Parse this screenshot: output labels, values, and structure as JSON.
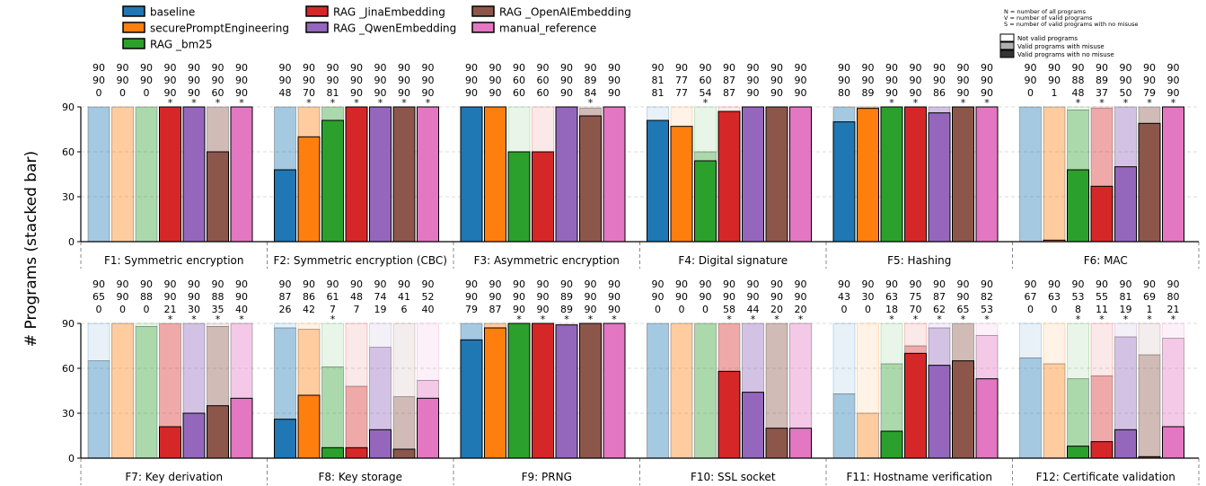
{
  "chart_data": {
    "type": "bar",
    "stacked": true,
    "ylabel": "# Programs (stacked bar)",
    "ylim": [
      0,
      90
    ],
    "yticks": [
      0,
      30,
      60,
      90
    ],
    "grid": true,
    "legend": {
      "placement": "top-left",
      "entries": [
        "baseline",
        "securePromptEngineering",
        "RAG _bm25",
        "RAG _JinaEmbedding",
        "RAG _QwenEmbedding",
        "RAG _OpenAIEmbedding",
        "manual_reference"
      ]
    },
    "series": [
      {
        "name": "baseline",
        "color": "#1f77b4"
      },
      {
        "name": "securePromptEngineering",
        "color": "#ff7f0e"
      },
      {
        "name": "RAG _bm25",
        "color": "#2ca02c"
      },
      {
        "name": "RAG _JinaEmbedding",
        "color": "#d62728"
      },
      {
        "name": "RAG _QwenEmbedding",
        "color": "#9467bd"
      },
      {
        "name": "RAG _OpenAIEmbedding",
        "color": "#8c564b"
      },
      {
        "name": "manual_reference",
        "color": "#e377c2"
      }
    ],
    "key": {
      "notes": [
        "N = number of all programs",
        "V = number of valid programs",
        "S = number of valid programs with no misuse"
      ],
      "entries": [
        {
          "label": "Not valid programs",
          "color": "#ffffff"
        },
        {
          "label": "Valid programs with misuse",
          "color": "#b0b0b0"
        },
        {
          "label": "Valid programs with no misuse",
          "color": "#333333"
        }
      ]
    },
    "panels": [
      {
        "label": "F1: Symmetric encryption",
        "N": [
          90,
          90,
          90,
          90,
          90,
          90,
          90
        ],
        "V": [
          90,
          90,
          90,
          90,
          90,
          90,
          90
        ],
        "S": [
          0,
          0,
          0,
          90,
          90,
          60,
          90
        ],
        "star": [
          false,
          false,
          false,
          true,
          true,
          true,
          true
        ]
      },
      {
        "label": "F2: Symmetric encryption (CBC)",
        "N": [
          90,
          90,
          90,
          90,
          90,
          90,
          90
        ],
        "V": [
          90,
          90,
          90,
          90,
          90,
          90,
          90
        ],
        "S": [
          48,
          70,
          81,
          90,
          90,
          90,
          90
        ],
        "star": [
          false,
          true,
          true,
          true,
          true,
          true,
          true
        ]
      },
      {
        "label": "F3: Asymmetric encryption",
        "N": [
          90,
          90,
          90,
          90,
          90,
          90,
          90
        ],
        "V": [
          90,
          90,
          60,
          60,
          90,
          89,
          90
        ],
        "S": [
          90,
          90,
          60,
          60,
          90,
          84,
          90
        ],
        "star": [
          false,
          false,
          false,
          false,
          false,
          true,
          false
        ]
      },
      {
        "label": "F4: Digital signature",
        "N": [
          90,
          90,
          90,
          90,
          90,
          90,
          90
        ],
        "V": [
          81,
          77,
          60,
          87,
          90,
          90,
          90
        ],
        "S": [
          81,
          77,
          54,
          87,
          90,
          90,
          90
        ],
        "star": [
          false,
          false,
          true,
          false,
          false,
          false,
          false
        ]
      },
      {
        "label": "F5: Hashing",
        "N": [
          90,
          90,
          90,
          90,
          90,
          90,
          90
        ],
        "V": [
          90,
          90,
          90,
          90,
          90,
          90,
          90
        ],
        "S": [
          80,
          89,
          90,
          90,
          86,
          90,
          90
        ],
        "star": [
          false,
          false,
          true,
          true,
          false,
          true,
          true
        ]
      },
      {
        "label": "F6: MAC",
        "N": [
          90,
          90,
          90,
          90,
          90,
          90,
          90
        ],
        "V": [
          90,
          90,
          88,
          89,
          90,
          90,
          90
        ],
        "S": [
          0,
          1,
          48,
          37,
          50,
          79,
          90
        ],
        "star": [
          false,
          false,
          true,
          true,
          true,
          true,
          true
        ]
      },
      {
        "label": "F7: Key derivation",
        "N": [
          90,
          90,
          90,
          90,
          90,
          90,
          90
        ],
        "V": [
          65,
          90,
          88,
          90,
          90,
          88,
          90
        ],
        "S": [
          0,
          0,
          0,
          21,
          30,
          35,
          40
        ],
        "star": [
          false,
          false,
          false,
          true,
          true,
          true,
          true
        ]
      },
      {
        "label": "F8: Key storage",
        "N": [
          90,
          90,
          90,
          90,
          90,
          90,
          90
        ],
        "V": [
          87,
          86,
          61,
          48,
          74,
          41,
          52
        ],
        "S": [
          26,
          42,
          7,
          7,
          19,
          6,
          40
        ],
        "star": [
          false,
          false,
          true,
          false,
          false,
          false,
          false
        ]
      },
      {
        "label": "F9: PRNG",
        "N": [
          90,
          90,
          90,
          90,
          90,
          90,
          90
        ],
        "V": [
          90,
          90,
          90,
          90,
          89,
          90,
          90
        ],
        "S": [
          79,
          87,
          90,
          90,
          89,
          90,
          90
        ],
        "star": [
          false,
          false,
          true,
          true,
          true,
          true,
          true
        ]
      },
      {
        "label": "F10: SSL socket",
        "N": [
          90,
          90,
          90,
          90,
          90,
          90,
          90
        ],
        "V": [
          90,
          90,
          90,
          90,
          90,
          90,
          90
        ],
        "S": [
          0,
          0,
          0,
          58,
          44,
          20,
          20
        ],
        "star": [
          false,
          false,
          false,
          true,
          true,
          true,
          true
        ]
      },
      {
        "label": "F11: Hostname verification",
        "N": [
          90,
          90,
          90,
          90,
          90,
          90,
          90
        ],
        "V": [
          43,
          30,
          63,
          75,
          87,
          90,
          82
        ],
        "S": [
          0,
          0,
          18,
          70,
          62,
          65,
          53
        ],
        "star": [
          false,
          false,
          true,
          true,
          true,
          true,
          true
        ]
      },
      {
        "label": "F12: Certificate validation",
        "N": [
          90,
          90,
          90,
          90,
          90,
          90,
          90
        ],
        "V": [
          67,
          63,
          53,
          55,
          81,
          69,
          80
        ],
        "S": [
          0,
          0,
          8,
          11,
          19,
          1,
          21
        ],
        "star": [
          false,
          false,
          true,
          true,
          true,
          true,
          true
        ]
      }
    ]
  }
}
